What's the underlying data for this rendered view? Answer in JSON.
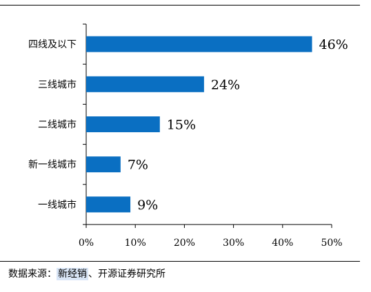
{
  "chart_data": {
    "type": "bar",
    "orientation": "horizontal",
    "categories": [
      "四线及以下",
      "三线城市",
      "二线城市",
      "新一线城市",
      "一线城市"
    ],
    "values": [
      46,
      24,
      15,
      7,
      9
    ],
    "value_labels": [
      "46%",
      "24%",
      "15%",
      "7%",
      "9%"
    ],
    "xlim": [
      0,
      50
    ],
    "x_ticks": [
      "0%",
      "10%",
      "20%",
      "30%",
      "40%",
      "50%"
    ],
    "bar_color": "#0a6fc2",
    "grid": false
  },
  "source": {
    "prefix": "数据来源：",
    "highlight": "新经销",
    "suffix": "、开源证券研究所"
  }
}
